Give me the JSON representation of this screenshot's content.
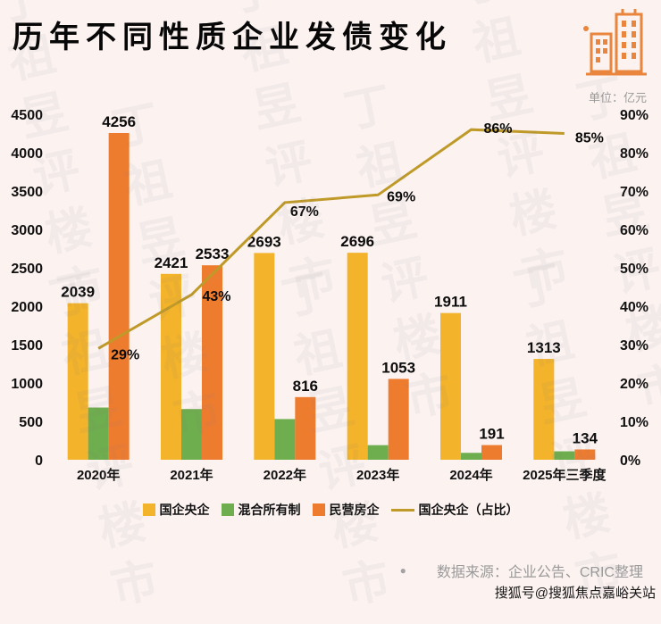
{
  "title": "历年不同性质企业发债变化",
  "unit_label": "单位：亿元",
  "watermark_text": "丁祖昱评楼市",
  "footer": {
    "bullet": "●",
    "source": "数据来源：企业公告、CRIC整理",
    "sohu_tag": "搜狐号@搜狐焦点嘉峪关站"
  },
  "colors": {
    "soe_bar": "#f3b32b",
    "mixed_bar": "#6fae4e",
    "private_bar": "#ee7c2f",
    "ratio_line": "#bf9a29",
    "background": "#fcf3f1",
    "axis_text": "#111111",
    "muted_text": "#9a9a9a",
    "icon_orange": "#e9853c"
  },
  "chart_data": {
    "type": "bar",
    "overlay": "line",
    "title": "历年不同性质企业发债变化",
    "categories": [
      "2020年",
      "2021年",
      "2022年",
      "2023年",
      "2024年",
      "2025年三季度"
    ],
    "series": [
      {
        "name": "国企央企",
        "kind": "bar",
        "color_key": "soe_bar",
        "values": [
          2039,
          2421,
          2693,
          2696,
          1911,
          1313
        ],
        "show_labels": true
      },
      {
        "name": "混合所有制",
        "kind": "bar",
        "color_key": "mixed_bar",
        "values": [
          680,
          660,
          530,
          190,
          90,
          110
        ],
        "show_labels": false
      },
      {
        "name": "民营房企",
        "kind": "bar",
        "color_key": "private_bar",
        "values": [
          4256,
          2533,
          816,
          1053,
          191,
          134
        ],
        "show_labels": true
      },
      {
        "name": "国企央企（占比）",
        "kind": "line",
        "color_key": "ratio_line",
        "values": [
          29,
          43,
          67,
          69,
          86,
          85
        ],
        "suffix": "%",
        "show_labels": true
      }
    ],
    "left_axis": {
      "min": 0,
      "max": 4500,
      "step": 500
    },
    "right_axis": {
      "min": 0,
      "max": 90,
      "step": 10,
      "suffix": "%"
    },
    "legend_position": "bottom",
    "grid": false
  }
}
